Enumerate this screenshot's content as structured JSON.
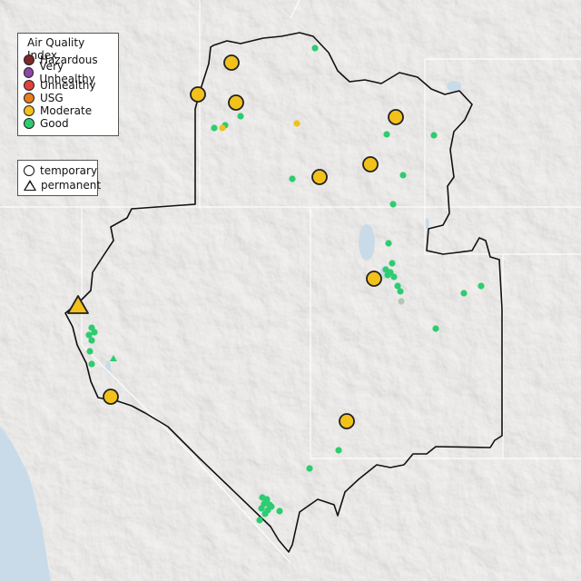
{
  "legend": {
    "title": "Air Quality Index",
    "categories": [
      {
        "label": "Hazardous",
        "color": "#7e2a2a"
      },
      {
        "label": "Very Unhealthy",
        "color": "#8b49a6"
      },
      {
        "label": "Unhealthy",
        "color": "#e0433a"
      },
      {
        "label": "USG",
        "color": "#e67e22"
      },
      {
        "label": "Moderate",
        "color": "#f2c11a"
      },
      {
        "label": "Good",
        "color": "#2ecc71"
      }
    ],
    "types": [
      {
        "label": "temporary",
        "shape": "circle"
      },
      {
        "label": "permanent",
        "shape": "triangle"
      }
    ]
  },
  "colors": {
    "land": "#e9e7e4",
    "water": "#c9dbe9",
    "boundary": "#111111",
    "state_line": "#ffffff",
    "marker_outline": "#222222"
  }
}
